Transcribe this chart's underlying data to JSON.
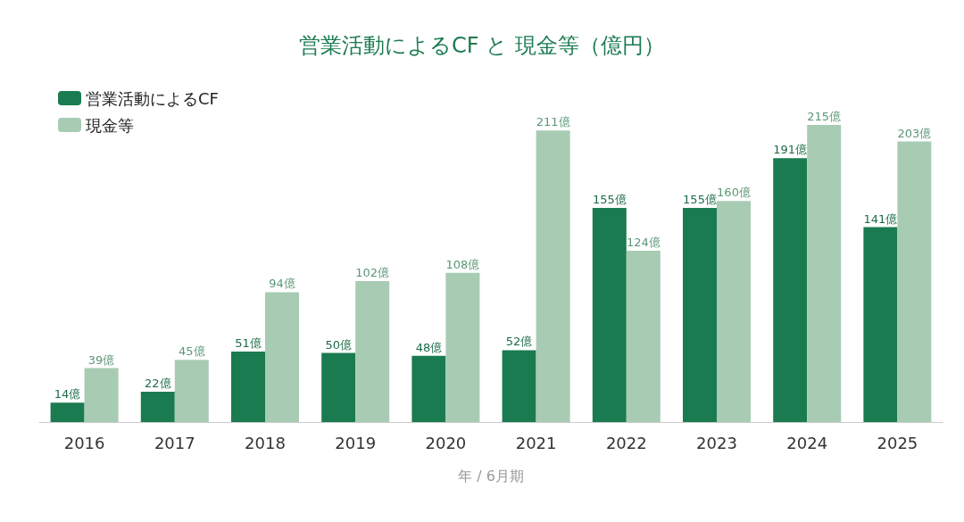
{
  "chart_data": {
    "type": "bar",
    "title": "営業活動によるCF と 現金等（億円）",
    "xlabel": "年 / 6月期",
    "categories": [
      "2016",
      "2017",
      "2018",
      "2019",
      "2020",
      "2021",
      "2022",
      "2023",
      "2024",
      "2025"
    ],
    "series": [
      {
        "name": "営業活動によるCF",
        "color": "#1b7b50",
        "values": [
          14,
          22,
          51,
          50,
          48,
          52,
          155,
          155,
          191,
          141
        ],
        "value_labels": [
          "14億",
          "22億",
          "51億",
          "50億",
          "48億",
          "52億",
          "155億",
          "155億",
          "191億",
          "141億"
        ]
      },
      {
        "name": "現金等",
        "color": "#a8cbb4",
        "values": [
          39,
          45,
          94,
          102,
          108,
          211,
          124,
          160,
          215,
          203
        ],
        "value_labels": [
          "39億",
          "45億",
          "94億",
          "102億",
          "108億",
          "211億",
          "124億",
          "160億",
          "215億",
          "203億"
        ]
      }
    ],
    "legend": "top left",
    "grid": false,
    "tick_labels": "x"
  }
}
